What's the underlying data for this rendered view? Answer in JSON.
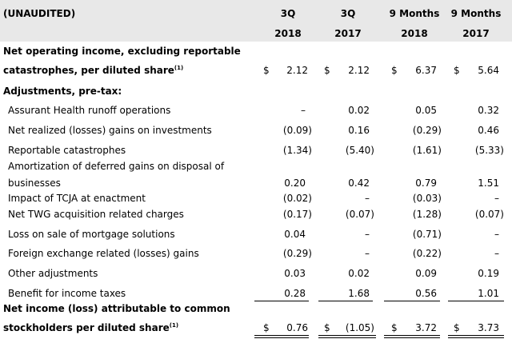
{
  "header": {
    "label": "(UNAUDITED)",
    "cols": [
      {
        "l1": "3Q",
        "l2": "2018"
      },
      {
        "l1": "3Q",
        "l2": "2017"
      },
      {
        "l1": "9 Months",
        "l2": "2018"
      },
      {
        "l1": "9 Months",
        "l2": "2017"
      }
    ]
  },
  "currency": "$",
  "footnote": "(1)",
  "rows": {
    "net_op_line1": "Net operating income, excluding reportable",
    "net_op_line2": "catastrophes, per diluted share",
    "net_op_values": [
      "2.12",
      "2.12",
      "6.37",
      "5.64"
    ],
    "adjustments_label": "Adjustments, pre-tax:",
    "items": [
      {
        "label": "Assurant Health runoff operations",
        "values": [
          "–",
          "0.02",
          "0.05",
          "0.32"
        ]
      },
      {
        "label": "Net realized (losses) gains on investments",
        "values": [
          "(0.09)",
          "0.16",
          "(0.29)",
          "0.46"
        ]
      },
      {
        "label": "Reportable catastrophes",
        "values": [
          "(1.34)",
          "(5.40)",
          "(1.61)",
          "(5.33)"
        ]
      },
      {
        "label": "Amortization of deferred gains on disposal of",
        "values": [
          "",
          "",
          "",
          ""
        ]
      },
      {
        "label": "businesses",
        "values": [
          "0.20",
          "0.42",
          "0.79",
          "1.51"
        ]
      },
      {
        "label": "Impact of TCJA at enactment",
        "values": [
          "(0.02)",
          "–",
          "(0.03)",
          "–"
        ]
      },
      {
        "label": "Net TWG acquisition related charges",
        "values": [
          "(0.17)",
          "(0.07)",
          "(1.28)",
          "(0.07)"
        ]
      },
      {
        "label": "Loss on sale of mortgage solutions",
        "values": [
          "0.04",
          "–",
          "(0.71)",
          "–"
        ]
      },
      {
        "label": "Foreign exchange related (losses) gains",
        "values": [
          "(0.29)",
          "–",
          "(0.22)",
          "–"
        ]
      },
      {
        "label": "Other adjustments",
        "values": [
          "0.03",
          "0.02",
          "0.09",
          "0.19"
        ]
      },
      {
        "label": "Benefit for income taxes",
        "values": [
          "0.28",
          "1.68",
          "0.56",
          "1.01"
        ]
      }
    ],
    "net_inc_line1": "Net income (loss) attributable to common",
    "net_inc_line2": "stockholders per diluted share",
    "net_inc_values": [
      "0.76",
      "(1.05)",
      "3.72",
      "3.73"
    ]
  }
}
